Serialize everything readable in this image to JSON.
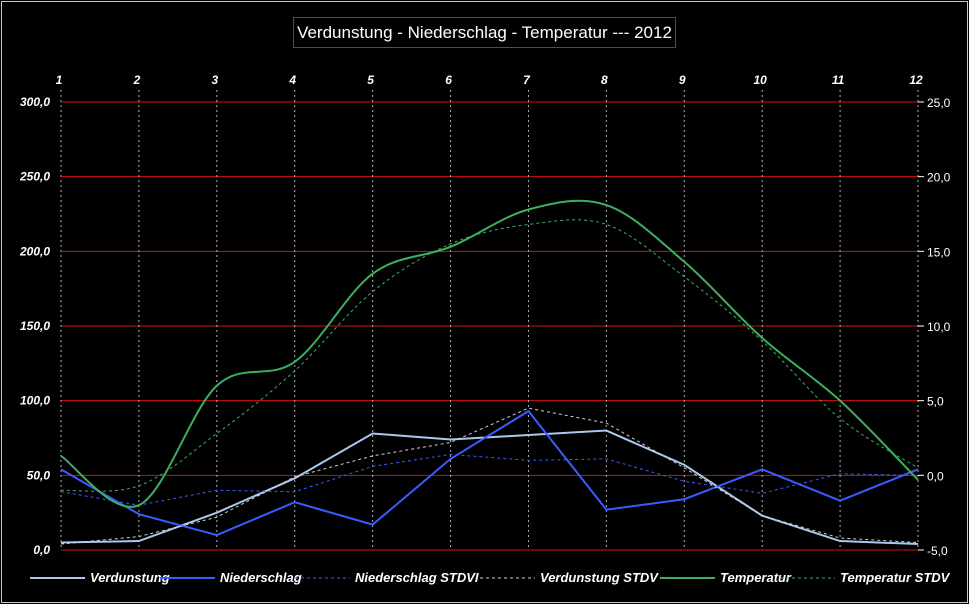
{
  "chart_data": {
    "type": "line",
    "title": "Verdunstung - Niederschlag - Temperatur --- 2012",
    "x": [
      1,
      2,
      3,
      4,
      5,
      6,
      7,
      8,
      9,
      10,
      11,
      12
    ],
    "x_tick_labels": [
      "1",
      "2",
      "3",
      "4",
      "5",
      "6",
      "7",
      "8",
      "9",
      "10",
      "11",
      "12"
    ],
    "y_left": {
      "range": [
        0,
        300
      ],
      "ticks": [
        "0,0",
        "50,0",
        "100,0",
        "150,0",
        "200,0",
        "250,0",
        "300,0"
      ]
    },
    "y_right": {
      "range": [
        -5,
        25
      ],
      "ticks": [
        "-5,0",
        "0,0",
        "5,0",
        "10,0",
        "15,0",
        "20,0",
        "25,0"
      ]
    },
    "grid": {
      "horizontal": true,
      "vertical": "dotted"
    },
    "legend_position": "bottom",
    "series": [
      {
        "name": "Verdunstung",
        "axis": "left",
        "style": "solid",
        "color": "#a8c8f0",
        "values": [
          5,
          6,
          25,
          48,
          78,
          74,
          77,
          80,
          57,
          23,
          6,
          4
        ]
      },
      {
        "name": "Niederschlag",
        "axis": "left",
        "style": "solid",
        "color": "#3b5bff",
        "values": [
          54,
          24,
          10,
          32,
          17,
          61,
          93,
          27,
          34,
          54,
          33,
          54
        ]
      },
      {
        "name": "Niederschlag STDVI",
        "axis": "left",
        "style": "dashed",
        "color": "#3b5bff",
        "values": [
          39,
          30,
          40,
          39,
          56,
          64,
          60,
          61,
          46,
          38,
          51,
          50
        ]
      },
      {
        "name": "Verdunstung STDV",
        "axis": "left",
        "style": "dashed",
        "color": "#d0d0d0",
        "values": [
          4,
          9,
          22,
          49,
          63,
          72,
          95,
          85,
          55,
          23,
          8,
          5
        ]
      },
      {
        "name": "Temperatur",
        "axis": "right",
        "style": "solid",
        "color": "#3cb060",
        "values": [
          1.3,
          -2.0,
          6.0,
          7.6,
          13.5,
          15.3,
          17.8,
          18.1,
          14.3,
          9.2,
          5.0,
          -0.3
        ]
      },
      {
        "name": "Temperatur STDV",
        "axis": "right",
        "style": "dashed",
        "color": "#3cb060",
        "values": [
          -1.0,
          -0.7,
          2.8,
          7.0,
          12.3,
          15.5,
          16.8,
          16.8,
          13.3,
          9.0,
          3.8,
          0.5
        ]
      }
    ]
  }
}
